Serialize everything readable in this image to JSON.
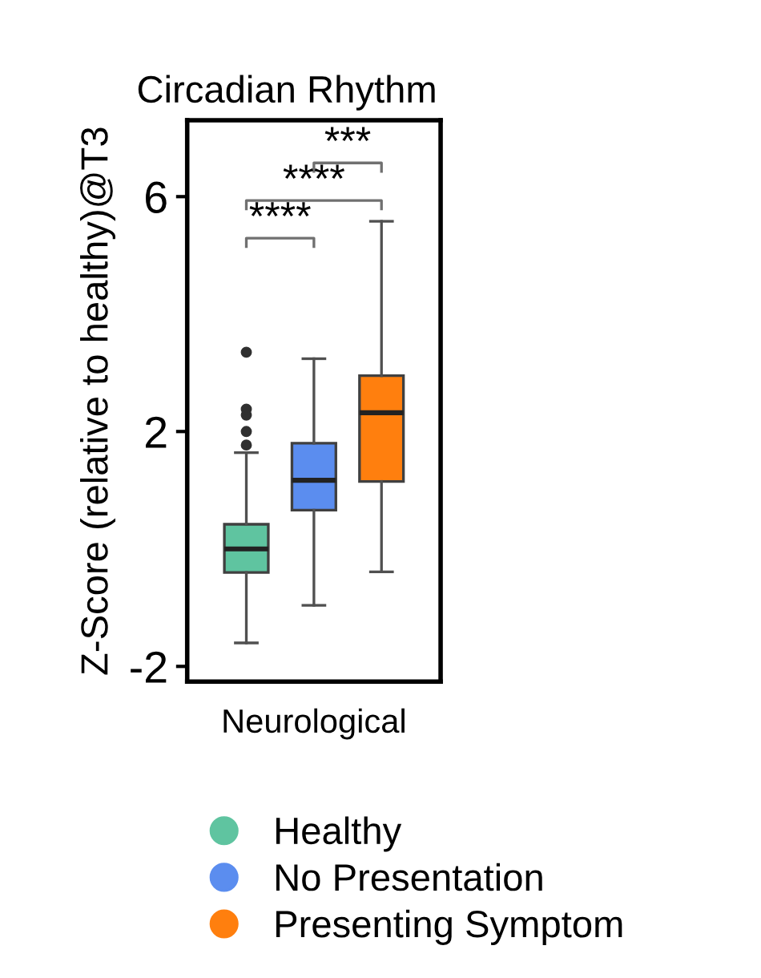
{
  "chart_data": {
    "type": "box",
    "title": "Circadian Rhythm",
    "ylabel": "Z-Score (relative to healthy)@T3",
    "categories": [
      "Neurological"
    ],
    "series": [
      {
        "name": "Healthy",
        "color": "#5fc4a0",
        "boxes": [
          {
            "low": -1.6,
            "q1": -0.4,
            "median": 0.0,
            "q3": 0.42,
            "high": 1.64,
            "outliers": [
              1.77,
              2.0,
              2.28,
              2.38,
              3.35
            ]
          }
        ]
      },
      {
        "name": "No Presentation",
        "color": "#5b8def",
        "boxes": [
          {
            "low": -0.96,
            "q1": 0.66,
            "median": 1.17,
            "q3": 1.8,
            "high": 3.24
          }
        ]
      },
      {
        "name": "Presenting Symptom",
        "color": "#ff7f0e",
        "boxes": [
          {
            "low": -0.39,
            "q1": 1.15,
            "median": 2.32,
            "q3": 2.95,
            "high": 5.58
          }
        ]
      }
    ],
    "ylim": [
      -2.26,
      7.3
    ],
    "yticks": [
      -2,
      2,
      6
    ],
    "grid": false,
    "legend": "bottom",
    "annotations": [
      "****",
      "****",
      "***"
    ]
  }
}
